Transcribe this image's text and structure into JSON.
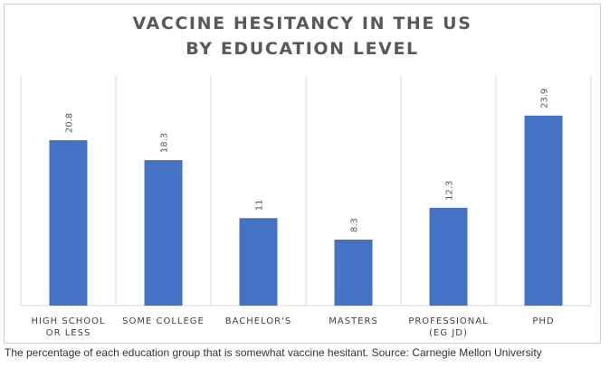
{
  "chart_data": {
    "type": "bar",
    "title_lines": [
      "VACCINE HESITANCY IN THE US",
      "BY EDUCATION LEVEL"
    ],
    "categories": [
      [
        "HIGH SCHOOL",
        "OR LESS"
      ],
      [
        "SOME COLLEGE"
      ],
      [
        "BACHELOR'S"
      ],
      [
        "MASTERS"
      ],
      [
        "PROFESSIONAL",
        "(EG JD)"
      ],
      [
        "PHD"
      ]
    ],
    "values": [
      20.8,
      18.3,
      11,
      8.3,
      12.3,
      23.9
    ],
    "value_labels": [
      "20.8",
      "18.3",
      "11",
      "8.3",
      "12.3",
      "23.9"
    ],
    "ylim": [
      0,
      29
    ],
    "bar_color": "#4472c4",
    "gridlines": "vertical category separators"
  },
  "caption": "The percentage of each education group that is somewhat vaccine hesitant. Source: Carnegie Mellon University"
}
